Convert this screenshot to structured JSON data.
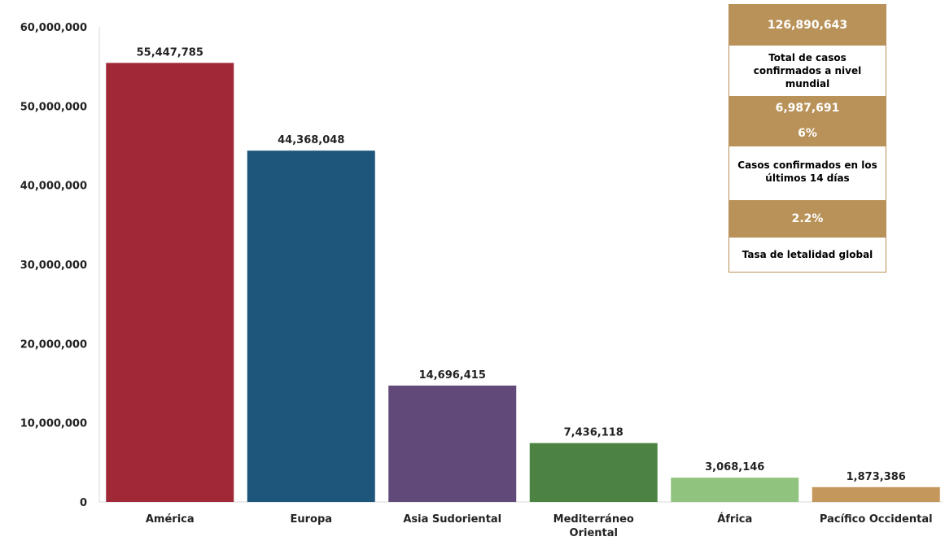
{
  "chart_data": {
    "type": "bar",
    "categories": [
      "América",
      "Europa",
      "Asia Sudoriental",
      "Mediterráneo Oriental",
      "África",
      "Pacífico Occidental"
    ],
    "category_lines": [
      [
        "América"
      ],
      [
        "Europa"
      ],
      [
        "Asia Sudoriental"
      ],
      [
        "Mediterráneo",
        "Oriental"
      ],
      [
        "África"
      ],
      [
        "Pacífico Occidental"
      ]
    ],
    "values": [
      55447785,
      44368048,
      14696415,
      7436118,
      3068146,
      1873386
    ],
    "value_labels": [
      "55,447,785",
      "44,368,048",
      "14,696,415",
      "7,436,118",
      "3,068,146",
      "1,873,386"
    ],
    "colors": [
      "#a02837",
      "#1e567b",
      "#61497a",
      "#4c8342",
      "#90c47e",
      "#c4975c"
    ],
    "y_ticks": [
      0,
      10000000,
      20000000,
      30000000,
      40000000,
      50000000,
      60000000
    ],
    "y_tick_labels": [
      "0",
      "10,000,000",
      "20,000,000",
      "30,000,000",
      "40,000,000",
      "50,000,000",
      "60,000,000"
    ],
    "ylim": [
      0,
      60000000
    ],
    "grid": false,
    "title": "",
    "xlabel": "",
    "ylabel": ""
  },
  "summary": {
    "total_cases": "126,890,643",
    "total_cases_label": "Total de casos confirmados a nivel mundial",
    "recent_cases": "6,987,691",
    "recent_percent": "6%",
    "recent_cases_label": "Casos confirmados en los últimos 14 días",
    "lethality": "2.2%",
    "lethality_label": "Tasa de letalidad global",
    "accent_color": "#b99259"
  }
}
